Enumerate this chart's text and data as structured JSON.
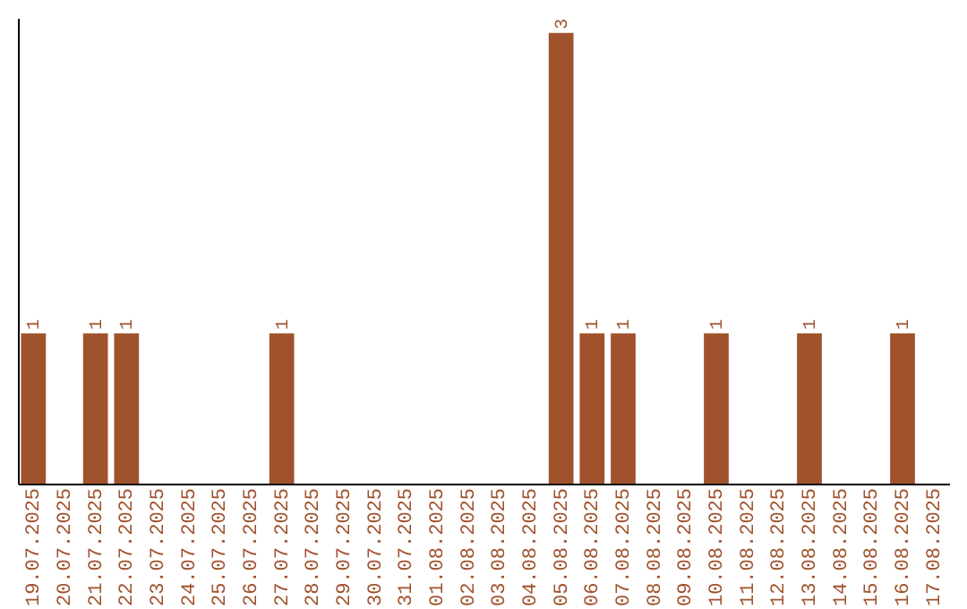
{
  "chart_data": {
    "type": "bar",
    "categories": [
      "19.07.2025",
      "20.07.2025",
      "21.07.2025",
      "22.07.2025",
      "23.07.2025",
      "24.07.2025",
      "25.07.2025",
      "26.07.2025",
      "27.07.2025",
      "28.07.2025",
      "29.07.2025",
      "30.07.2025",
      "31.07.2025",
      "01.08.2025",
      "02.08.2025",
      "03.08.2025",
      "04.08.2025",
      "05.08.2025",
      "06.08.2025",
      "07.08.2025",
      "08.08.2025",
      "09.08.2025",
      "10.08.2025",
      "11.08.2025",
      "12.08.2025",
      "13.08.2025",
      "14.08.2025",
      "15.08.2025",
      "16.08.2025",
      "17.08.2025"
    ],
    "values": [
      1,
      0,
      1,
      1,
      0,
      0,
      0,
      0,
      1,
      0,
      0,
      0,
      0,
      0,
      0,
      0,
      0,
      3,
      1,
      1,
      0,
      0,
      1,
      0,
      0,
      1,
      0,
      0,
      1,
      0
    ],
    "value_labels": [
      "1",
      null,
      "1",
      "1",
      null,
      null,
      null,
      null,
      "1",
      null,
      null,
      null,
      null,
      null,
      null,
      null,
      null,
      "3",
      "1",
      "1",
      null,
      null,
      "1",
      null,
      null,
      "1",
      null,
      null,
      "1",
      null
    ],
    "color": "#a0522d",
    "ylim": [
      0,
      3.1
    ],
    "tick_labels": "x",
    "grid": false
  }
}
